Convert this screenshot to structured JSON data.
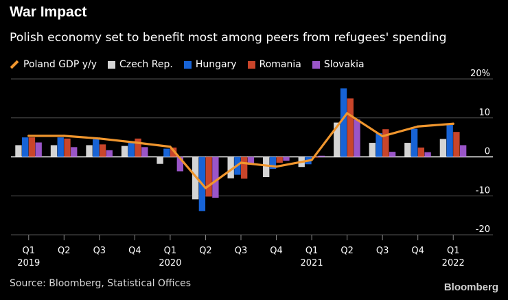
{
  "header": {
    "title": "War Impact",
    "subtitle": "Polish economy set to benefit most among peers from refugees' spending"
  },
  "footer": {
    "source": "Source: Bloomberg, Statistical Offices",
    "brand": "Bloomberg"
  },
  "colors": {
    "Poland": "#f0962e",
    "Czech": "#d4d4d4",
    "Hungary": "#1763d6",
    "Romania": "#c9452a",
    "Slovakia": "#9a55c8",
    "zero": "#ffffff",
    "grid": "#555555"
  },
  "chart_data": {
    "type": "bar+line",
    "title": "War Impact",
    "subtitle": "Polish economy set to benefit most among peers from refugees' spending",
    "categories": [
      "Q1 2019",
      "Q2 2019",
      "Q3 2019",
      "Q4 2019",
      "Q1 2020",
      "Q2 2020",
      "Q3 2020",
      "Q4 2020",
      "Q1 2021",
      "Q2 2021",
      "Q3 2021",
      "Q4 2021",
      "Q1 2022"
    ],
    "x_tick_labels": [
      {
        "q": "Q1",
        "year": "2019"
      },
      {
        "q": "Q2",
        "year": ""
      },
      {
        "q": "Q3",
        "year": ""
      },
      {
        "q": "Q4",
        "year": ""
      },
      {
        "q": "Q1",
        "year": "2020"
      },
      {
        "q": "Q2",
        "year": ""
      },
      {
        "q": "Q3",
        "year": ""
      },
      {
        "q": "Q4",
        "year": ""
      },
      {
        "q": "Q1",
        "year": "2021"
      },
      {
        "q": "Q2",
        "year": ""
      },
      {
        "q": "Q3",
        "year": ""
      },
      {
        "q": "Q4",
        "year": ""
      },
      {
        "q": "Q1",
        "year": "2022"
      }
    ],
    "series": [
      {
        "name": "Czech Rep.",
        "key": "Czech",
        "kind": "bar",
        "values": [
          3.0,
          3.0,
          3.0,
          2.8,
          -1.8,
          -10.9,
          -5.5,
          -5.2,
          -2.6,
          8.8,
          3.6,
          3.6,
          4.6
        ]
      },
      {
        "name": "Hungary",
        "key": "Hungary",
        "kind": "bar",
        "values": [
          5.0,
          5.0,
          4.5,
          3.8,
          2.1,
          -13.9,
          -4.6,
          -3.1,
          -1.9,
          17.6,
          6.1,
          7.2,
          8.2
        ]
      },
      {
        "name": "Romania",
        "key": "Romania",
        "kind": "bar",
        "values": [
          5.0,
          4.7,
          3.2,
          4.7,
          2.4,
          -10.2,
          -5.6,
          -1.5,
          -0.2,
          15.0,
          7.1,
          2.4,
          6.4
        ]
      },
      {
        "name": "Slovakia",
        "key": "Slovakia",
        "kind": "bar",
        "values": [
          3.7,
          2.5,
          1.7,
          2.5,
          -3.7,
          -10.5,
          -2.0,
          -1.0,
          0.3,
          9.6,
          1.3,
          1.2,
          3.0
        ]
      },
      {
        "name": "Poland GDP y/y",
        "key": "Poland",
        "kind": "line",
        "values": [
          5.4,
          5.4,
          4.7,
          3.7,
          2.6,
          -8.0,
          -1.5,
          -2.5,
          -0.8,
          11.2,
          5.3,
          7.8,
          8.5
        ]
      }
    ],
    "legend_order": [
      "Poland",
      "Czech",
      "Hungary",
      "Romania",
      "Slovakia"
    ],
    "y_ticks": [
      20,
      10,
      0,
      -10,
      -20
    ],
    "y_tick_labels": [
      "20%",
      "10",
      "0",
      "-10",
      "-20"
    ],
    "ylim": [
      -20,
      20
    ],
    "xlabel": "",
    "ylabel": "",
    "legend_placement": "top"
  }
}
